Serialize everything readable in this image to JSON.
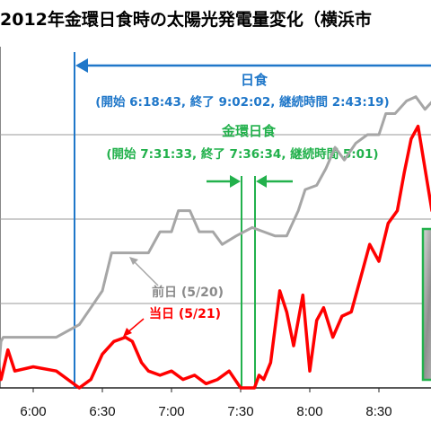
{
  "chart_data": {
    "type": "line",
    "title": "2012年金環日食時の太陽光発電量変化（横浜市",
    "xlabel": "",
    "ylabel": "",
    "x_ticks": [
      "6:00",
      "6:30",
      "7:00",
      "7:30",
      "8:00",
      "8:30"
    ],
    "grid": true,
    "series": [
      {
        "name": "前日 (5/20)",
        "color": "#a6a6a6",
        "x": [
          "5:40",
          "5:42",
          "5:43",
          "5:44",
          "5:45",
          "5:46",
          "5:47",
          "6:00",
          "6:10",
          "6:20",
          "6:25",
          "6:30",
          "6:34",
          "6:40",
          "6:45",
          "6:50",
          "6:55",
          "7:00",
          "7:03",
          "7:08",
          "7:12",
          "7:18",
          "7:22",
          "7:28",
          "7:35",
          "7:40",
          "7:45",
          "7:50",
          "7:55",
          "7:58",
          "8:03",
          "8:07",
          "8:11",
          "8:15",
          "8:20",
          "8:25",
          "8:30",
          "8:33",
          "8:37",
          "8:42",
          "8:46",
          "8:50",
          "8:55"
        ],
        "y": [
          0.2,
          0.55,
          0.2,
          0.55,
          0.2,
          0.55,
          0.6,
          0.6,
          0.6,
          0.75,
          0.95,
          1.15,
          1.6,
          1.6,
          1.6,
          1.6,
          1.85,
          1.85,
          2.1,
          2.1,
          1.85,
          1.85,
          1.7,
          1.8,
          1.9,
          1.85,
          1.8,
          1.8,
          2.1,
          2.35,
          2.4,
          2.6,
          2.85,
          2.7,
          2.9,
          3.0,
          3.0,
          3.25,
          3.25,
          3.4,
          3.45,
          3.3,
          3.45
        ]
      },
      {
        "name": "当日 (5/21)",
        "color": "#ff0000",
        "x": [
          "5:40",
          "5:43",
          "5:46",
          "5:49",
          "5:52",
          "6:00",
          "6:10",
          "6:20",
          "6:25",
          "6:30",
          "6:35",
          "6:40",
          "6:43",
          "6:47",
          "6:50",
          "6:55",
          "7:00",
          "7:05",
          "7:10",
          "7:15",
          "7:20",
          "7:25",
          "7:30",
          "7:33",
          "7:36",
          "7:38",
          "7:40",
          "7:43",
          "7:47",
          "7:50",
          "7:53",
          "7:57",
          "8:00",
          "8:03",
          "8:06",
          "8:10",
          "8:14",
          "8:18",
          "8:22",
          "8:26",
          "8:30",
          "8:34",
          "8:38",
          "8:41",
          "8:44",
          "8:47",
          "8:50",
          "8:53",
          "8:56"
        ],
        "y": [
          0.2,
          0.5,
          0.1,
          0.45,
          0.2,
          0.25,
          0.2,
          0.0,
          0.1,
          0.4,
          0.55,
          0.6,
          0.55,
          0.3,
          0.2,
          0.15,
          0.2,
          0.1,
          0.15,
          0.05,
          0.1,
          0.2,
          0.0,
          0.0,
          0.0,
          0.15,
          0.1,
          0.3,
          1.15,
          0.9,
          0.5,
          1.1,
          0.2,
          0.8,
          0.95,
          0.6,
          0.85,
          0.9,
          1.3,
          1.7,
          1.5,
          1.95,
          2.1,
          2.55,
          2.95,
          3.1,
          2.6,
          2.1,
          3.0
        ]
      }
    ],
    "annotations": {
      "nisshoku_label": "日食",
      "nisshoku_detail": "(開始 6:18:43, 終了 9:02:02, 継続時間 2:43:19)",
      "kinkan_label": "金環日食",
      "kinkan_detail": "(開始 7:31:33, 終了 7:36:34, 継続時間 5:01)",
      "eclipse_start": "6:18",
      "annular_start": "7:31",
      "annular_end": "7:36",
      "blue_color": "#1f77c9",
      "green_color": "#22b14c"
    }
  }
}
